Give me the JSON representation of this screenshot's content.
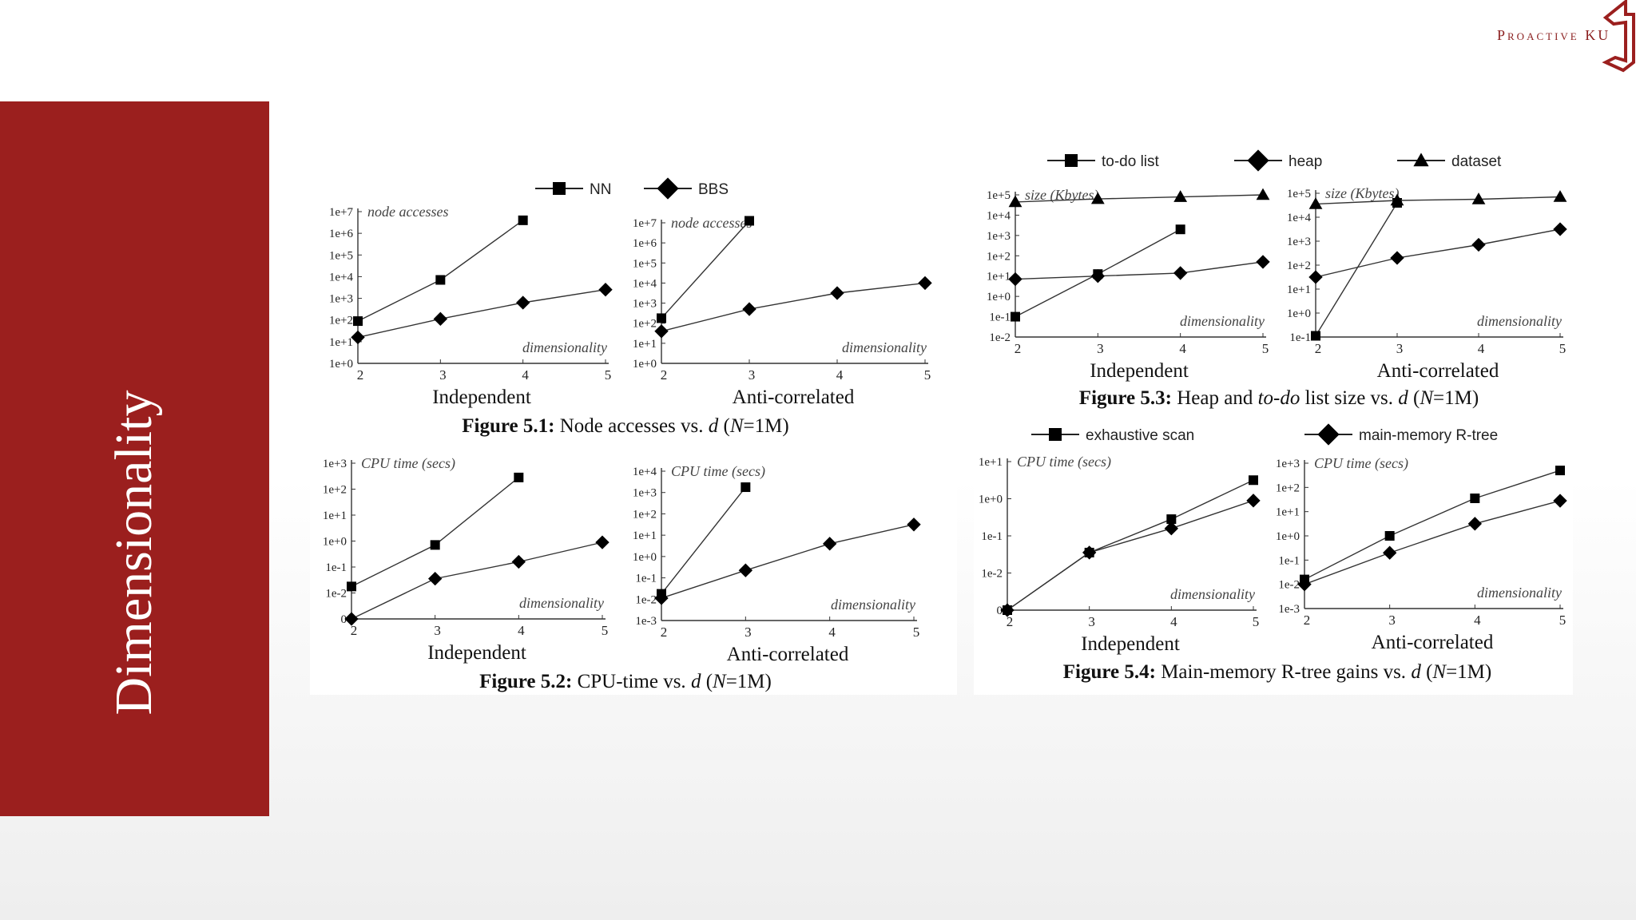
{
  "slide": {
    "title": "Dimensionality",
    "logo_text": "Proactive KU",
    "accent_color": "#9b1f1e"
  },
  "figures": [
    {
      "id": "fig51",
      "caption_bold": "Figure 5.1:",
      "caption_pre": " Node accesses vs. ",
      "caption_var": "d",
      "caption_post_pre": " (",
      "caption_n": "N",
      "caption_post": "=1M)",
      "legend": [
        {
          "label": "NN",
          "marker": "square"
        },
        {
          "label": "BBS",
          "marker": "diamond"
        }
      ]
    },
    {
      "id": "fig52",
      "caption_bold": "Figure 5.2:",
      "caption_pre": " CPU-time vs. ",
      "caption_var": "d",
      "caption_post_pre": " (",
      "caption_n": "N",
      "caption_post": "=1M)",
      "legend": []
    },
    {
      "id": "fig53",
      "caption_bold": "Figure 5.3:",
      "caption_pre": " Heap and ",
      "caption_italic_mid": "to-do",
      "caption_pre2": " list size vs. ",
      "caption_var": "d",
      "caption_post_pre": " (",
      "caption_n": "N",
      "caption_post": "=1M)",
      "legend": [
        {
          "label": "to-do list",
          "marker": "square"
        },
        {
          "label": "heap",
          "marker": "diamond"
        },
        {
          "label": "dataset",
          "marker": "triangle"
        }
      ]
    },
    {
      "id": "fig54",
      "caption_bold": "Figure 5.4:",
      "caption_pre": " Main-memory R-tree gains vs. ",
      "caption_var": "d",
      "caption_post_pre": " (",
      "caption_n": "N",
      "caption_post": "=1M)",
      "legend": [
        {
          "label": "exhaustive scan",
          "marker": "square"
        },
        {
          "label": "main-memory R-tree",
          "marker": "diamond"
        }
      ]
    }
  ],
  "chart_data": [
    {
      "type": "line",
      "figure": "fig51",
      "subtitle": "Independent",
      "ylabel": "node accesses",
      "xlabel": "dimensionality",
      "x": [
        2,
        3,
        4,
        5
      ],
      "log_y": true,
      "yticks": [
        "1e+0",
        "1e+1",
        "1e+2",
        "1e+3",
        "1e+4",
        "1e+5",
        "1e+6",
        "1e+7"
      ],
      "ylim": [
        0,
        7
      ],
      "series": [
        {
          "name": "NN",
          "marker": "square",
          "x": [
            2,
            3,
            4
          ],
          "log10_values": [
            1.95,
            3.85,
            6.6
          ]
        },
        {
          "name": "BBS",
          "marker": "diamond",
          "x": [
            2,
            3,
            4,
            5
          ],
          "log10_values": [
            1.2,
            2.05,
            2.8,
            3.4
          ]
        }
      ]
    },
    {
      "type": "line",
      "figure": "fig51",
      "subtitle": "Anti-correlated",
      "ylabel": "node accesses",
      "xlabel": "dimensionality",
      "x": [
        2,
        3,
        4,
        5
      ],
      "log_y": true,
      "yticks": [
        "1e+0",
        "1e+1",
        "1e+2",
        "1e+3",
        "1e+4",
        "1e+5",
        "1e+6",
        "1e+7"
      ],
      "ylim": [
        0,
        7
      ],
      "series": [
        {
          "name": "NN",
          "marker": "square",
          "x": [
            2,
            3
          ],
          "log10_values": [
            2.25,
            7.1
          ]
        },
        {
          "name": "BBS",
          "marker": "diamond",
          "x": [
            2,
            3,
            4,
            5
          ],
          "log10_values": [
            1.6,
            2.7,
            3.5,
            4.0
          ]
        }
      ]
    },
    {
      "type": "line",
      "figure": "fig52",
      "subtitle": "Independent",
      "ylabel": "CPU time (secs)",
      "xlabel": "dimensionality",
      "x": [
        2,
        3,
        4,
        5
      ],
      "log_y": true,
      "yticks": [
        "0",
        "1e-2",
        "1e-1",
        "1e+0",
        "1e+1",
        "1e+2",
        "1e+3"
      ],
      "ylim": [
        0,
        6
      ],
      "series": [
        {
          "name": "NN",
          "marker": "square",
          "x": [
            2,
            3,
            4
          ],
          "log10_values": [
            1.25,
            2.85,
            5.45
          ]
        },
        {
          "name": "BBS",
          "marker": "diamond",
          "x": [
            2,
            3,
            4,
            5
          ],
          "log10_values": [
            0.0,
            1.55,
            2.2,
            2.95
          ]
        }
      ]
    },
    {
      "type": "line",
      "figure": "fig52",
      "subtitle": "Anti-correlated",
      "ylabel": "CPU time (secs)",
      "xlabel": "dimensionality",
      "x": [
        2,
        3,
        4,
        5
      ],
      "log_y": true,
      "yticks": [
        "1e-3",
        "1e-2",
        "1e-1",
        "1e+0",
        "1e+1",
        "1e+2",
        "1e+3",
        "1e+4"
      ],
      "ylim": [
        0,
        7
      ],
      "series": [
        {
          "name": "NN",
          "marker": "square",
          "x": [
            2,
            3
          ],
          "log10_values": [
            1.25,
            6.25
          ]
        },
        {
          "name": "BBS",
          "marker": "diamond",
          "x": [
            2,
            3,
            4,
            5
          ],
          "log10_values": [
            1.05,
            2.35,
            3.6,
            4.5
          ]
        }
      ]
    },
    {
      "type": "line",
      "figure": "fig53",
      "subtitle": "Independent",
      "ylabel": "size (Kbytes)",
      "xlabel": "dimensionality",
      "x": [
        2,
        3,
        4,
        5
      ],
      "log_y": true,
      "yticks": [
        "1e-2",
        "1e-1",
        "1e+0",
        "1e+1",
        "1e+2",
        "1e+3",
        "1e+4",
        "1e+5"
      ],
      "ylim": [
        0,
        7
      ],
      "series": [
        {
          "name": "to-do list",
          "marker": "square",
          "x": [
            2,
            3,
            4
          ],
          "log10_values": [
            1.0,
            3.1,
            5.3
          ]
        },
        {
          "name": "heap",
          "marker": "diamond",
          "x": [
            2,
            3,
            4,
            5
          ],
          "log10_values": [
            2.85,
            3.0,
            3.15,
            3.7
          ]
        },
        {
          "name": "dataset",
          "marker": "triangle",
          "x": [
            2,
            3,
            4,
            5
          ],
          "log10_values": [
            6.65,
            6.8,
            6.9,
            7.0
          ]
        }
      ]
    },
    {
      "type": "line",
      "figure": "fig53",
      "subtitle": "Anti-correlated",
      "ylabel": "size (Kbytes)",
      "xlabel": "dimensionality",
      "x": [
        2,
        3,
        4,
        5
      ],
      "log_y": true,
      "yticks": [
        "1e-1",
        "1e+0",
        "1e+1",
        "1e+2",
        "1e+3",
        "1e+4",
        "1e+5"
      ],
      "ylim": [
        0,
        6
      ],
      "series": [
        {
          "name": "to-do list",
          "marker": "square",
          "x": [
            2,
            3
          ],
          "log10_values": [
            0.05,
            5.6
          ]
        },
        {
          "name": "heap",
          "marker": "diamond",
          "x": [
            2,
            3,
            4,
            5
          ],
          "log10_values": [
            2.5,
            3.3,
            3.85,
            4.5
          ]
        },
        {
          "name": "dataset",
          "marker": "triangle",
          "x": [
            2,
            3,
            4,
            5
          ],
          "log10_values": [
            5.55,
            5.7,
            5.75,
            5.85
          ]
        }
      ]
    },
    {
      "type": "line",
      "figure": "fig54",
      "subtitle": "Independent",
      "ylabel": "CPU time (secs)",
      "xlabel": "dimensionality",
      "x": [
        2,
        3,
        4,
        5
      ],
      "log_y": true,
      "yticks": [
        "0",
        "1e-2",
        "1e-1",
        "1e+0",
        "1e+1"
      ],
      "ylim": [
        0,
        4
      ],
      "series": [
        {
          "name": "exhaustive scan",
          "marker": "square",
          "x": [
            2,
            3,
            4,
            5
          ],
          "log10_values": [
            0.0,
            1.55,
            2.45,
            3.5
          ]
        },
        {
          "name": "main-memory R-tree",
          "marker": "diamond",
          "x": [
            2,
            3,
            4,
            5
          ],
          "log10_values": [
            0.0,
            1.55,
            2.2,
            2.95
          ]
        }
      ]
    },
    {
      "type": "line",
      "figure": "fig54",
      "subtitle": "Anti-correlated",
      "ylabel": "CPU time (secs)",
      "xlabel": "dimensionality",
      "x": [
        2,
        3,
        4,
        5
      ],
      "log_y": true,
      "yticks": [
        "1e-3",
        "1e-2",
        "1e-1",
        "1e+0",
        "1e+1",
        "1e+2",
        "1e+3"
      ],
      "ylim": [
        0,
        6
      ],
      "series": [
        {
          "name": "exhaustive scan",
          "marker": "square",
          "x": [
            2,
            3,
            4,
            5
          ],
          "log10_values": [
            1.2,
            3.0,
            4.55,
            5.7
          ]
        },
        {
          "name": "main-memory R-tree",
          "marker": "diamond",
          "x": [
            2,
            3,
            4,
            5
          ],
          "log10_values": [
            1.0,
            2.3,
            3.5,
            4.45
          ]
        }
      ]
    }
  ]
}
